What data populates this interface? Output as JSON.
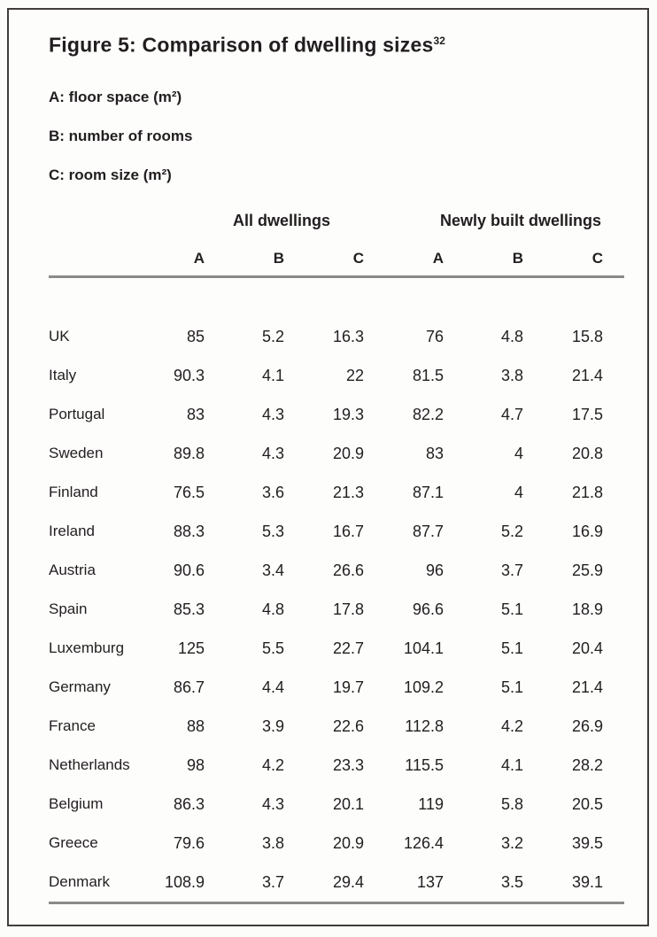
{
  "figure": {
    "title": "Figure 5: Comparison of dwelling sizes",
    "title_footnote": "32",
    "legend": [
      "A: floor space (m²)",
      "B: number of rooms",
      "C: room size (m²)"
    ]
  },
  "table": {
    "groups": [
      "All dwellings",
      "Newly built dwellings"
    ],
    "columns": [
      "A",
      "B",
      "C",
      "A",
      "B",
      "C"
    ],
    "rows": [
      {
        "country": "UK",
        "values": [
          "85",
          "5.2",
          "16.3",
          "76",
          "4.8",
          "15.8"
        ]
      },
      {
        "country": "Italy",
        "values": [
          "90.3",
          "4.1",
          "22",
          "81.5",
          "3.8",
          "21.4"
        ]
      },
      {
        "country": "Portugal",
        "values": [
          "83",
          "4.3",
          "19.3",
          "82.2",
          "4.7",
          "17.5"
        ]
      },
      {
        "country": "Sweden",
        "values": [
          "89.8",
          "4.3",
          "20.9",
          "83",
          "4",
          "20.8"
        ]
      },
      {
        "country": "Finland",
        "values": [
          "76.5",
          "3.6",
          "21.3",
          "87.1",
          "4",
          "21.8"
        ]
      },
      {
        "country": "Ireland",
        "values": [
          "88.3",
          "5.3",
          "16.7",
          "87.7",
          "5.2",
          "16.9"
        ]
      },
      {
        "country": "Austria",
        "values": [
          "90.6",
          "3.4",
          "26.6",
          "96",
          "3.7",
          "25.9"
        ]
      },
      {
        "country": "Spain",
        "values": [
          "85.3",
          "4.8",
          "17.8",
          "96.6",
          "5.1",
          "18.9"
        ]
      },
      {
        "country": "Luxemburg",
        "values": [
          "125",
          "5.5",
          "22.7",
          "104.1",
          "5.1",
          "20.4"
        ]
      },
      {
        "country": "Germany",
        "values": [
          "86.7",
          "4.4",
          "19.7",
          "109.2",
          "5.1",
          "21.4"
        ]
      },
      {
        "country": "France",
        "values": [
          "88",
          "3.9",
          "22.6",
          "112.8",
          "4.2",
          "26.9"
        ]
      },
      {
        "country": "Netherlands",
        "values": [
          "98",
          "4.2",
          "23.3",
          "115.5",
          "4.1",
          "28.2"
        ]
      },
      {
        "country": "Belgium",
        "values": [
          "86.3",
          "4.3",
          "20.1",
          "119",
          "5.8",
          "20.5"
        ]
      },
      {
        "country": "Greece",
        "values": [
          "79.6",
          "3.8",
          "20.9",
          "126.4",
          "3.2",
          "39.5"
        ]
      },
      {
        "country": "Denmark",
        "values": [
          "108.9",
          "3.7",
          "29.4",
          "137",
          "3.5",
          "39.1"
        ]
      }
    ]
  },
  "colors": {
    "text": "#221e1f",
    "rule": "#8a8a8a",
    "frame_border": "#403d39",
    "background": "#fdfdfc"
  }
}
